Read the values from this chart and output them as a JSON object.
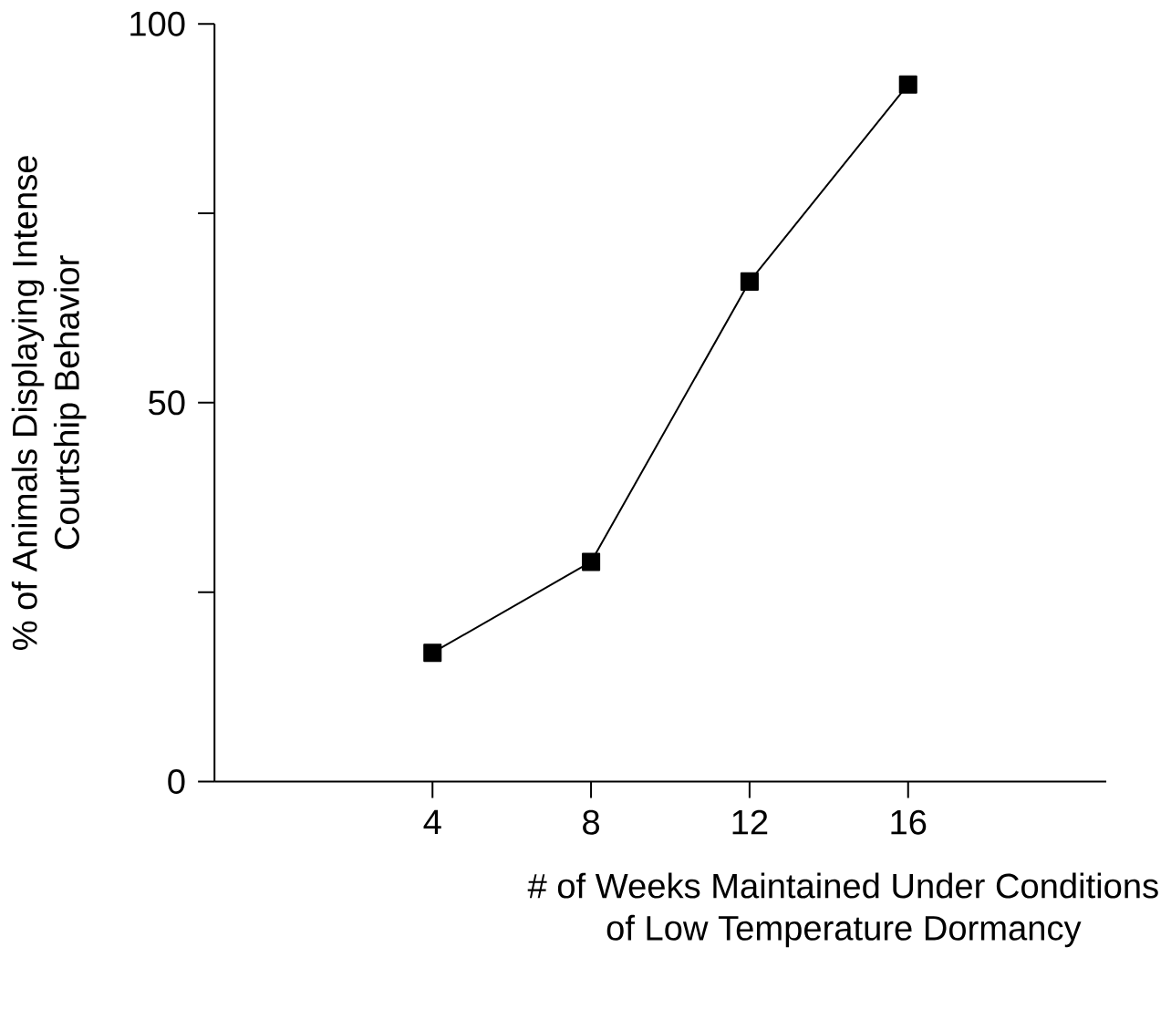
{
  "chart_data": {
    "type": "line",
    "xlabel": "# of Weeks Maintained Under Conditions\nof Low Temperature Dormancy",
    "ylabel": "% of Animals Displaying Intense\nCourtship Behavior",
    "x": [
      4,
      8,
      12,
      16
    ],
    "series": [
      {
        "color": "#000000",
        "values": [
          17,
          29,
          66,
          92
        ]
      }
    ],
    "xlim": [
      -1.5,
      21
    ],
    "ylim": [
      0,
      100
    ],
    "xticks": [
      4,
      8,
      12,
      16
    ],
    "yticks": [
      0,
      {
        "value": 25,
        "label": null
      },
      50,
      {
        "value": 75,
        "label": null
      },
      100
    ],
    "marker": "square",
    "line_style": "solid"
  }
}
